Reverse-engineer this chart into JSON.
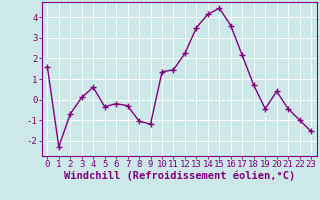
{
  "x": [
    0,
    1,
    2,
    3,
    4,
    5,
    6,
    7,
    8,
    9,
    10,
    11,
    12,
    13,
    14,
    15,
    16,
    17,
    18,
    19,
    20,
    21,
    22,
    23
  ],
  "y": [
    1.6,
    -2.3,
    -0.7,
    0.1,
    0.6,
    -0.35,
    -0.2,
    -0.3,
    -1.05,
    -1.2,
    1.35,
    1.45,
    2.25,
    3.5,
    4.15,
    4.45,
    3.6,
    2.15,
    0.7,
    -0.45,
    0.4,
    -0.45,
    -1.0,
    -1.55
  ],
  "line_color": "#800080",
  "marker": "+",
  "markersize": 4,
  "linewidth": 1.0,
  "markeredgewidth": 1.0,
  "xlabel": "Windchill (Refroidissement éolien,°C)",
  "xlabel_fontsize": 7.5,
  "xlim": [
    -0.5,
    23.5
  ],
  "ylim": [
    -2.75,
    4.75
  ],
  "yticks": [
    -2,
    -1,
    0,
    1,
    2,
    3,
    4
  ],
  "xticks": [
    0,
    1,
    2,
    3,
    4,
    5,
    6,
    7,
    8,
    9,
    10,
    11,
    12,
    13,
    14,
    15,
    16,
    17,
    18,
    19,
    20,
    21,
    22,
    23
  ],
  "tick_fontsize": 6.5,
  "bg_color": "#cce8e8",
  "grid_color": "#ffffff",
  "spine_color": "#800080",
  "fig_bg": "#cce8e8",
  "label_color": "#800080"
}
